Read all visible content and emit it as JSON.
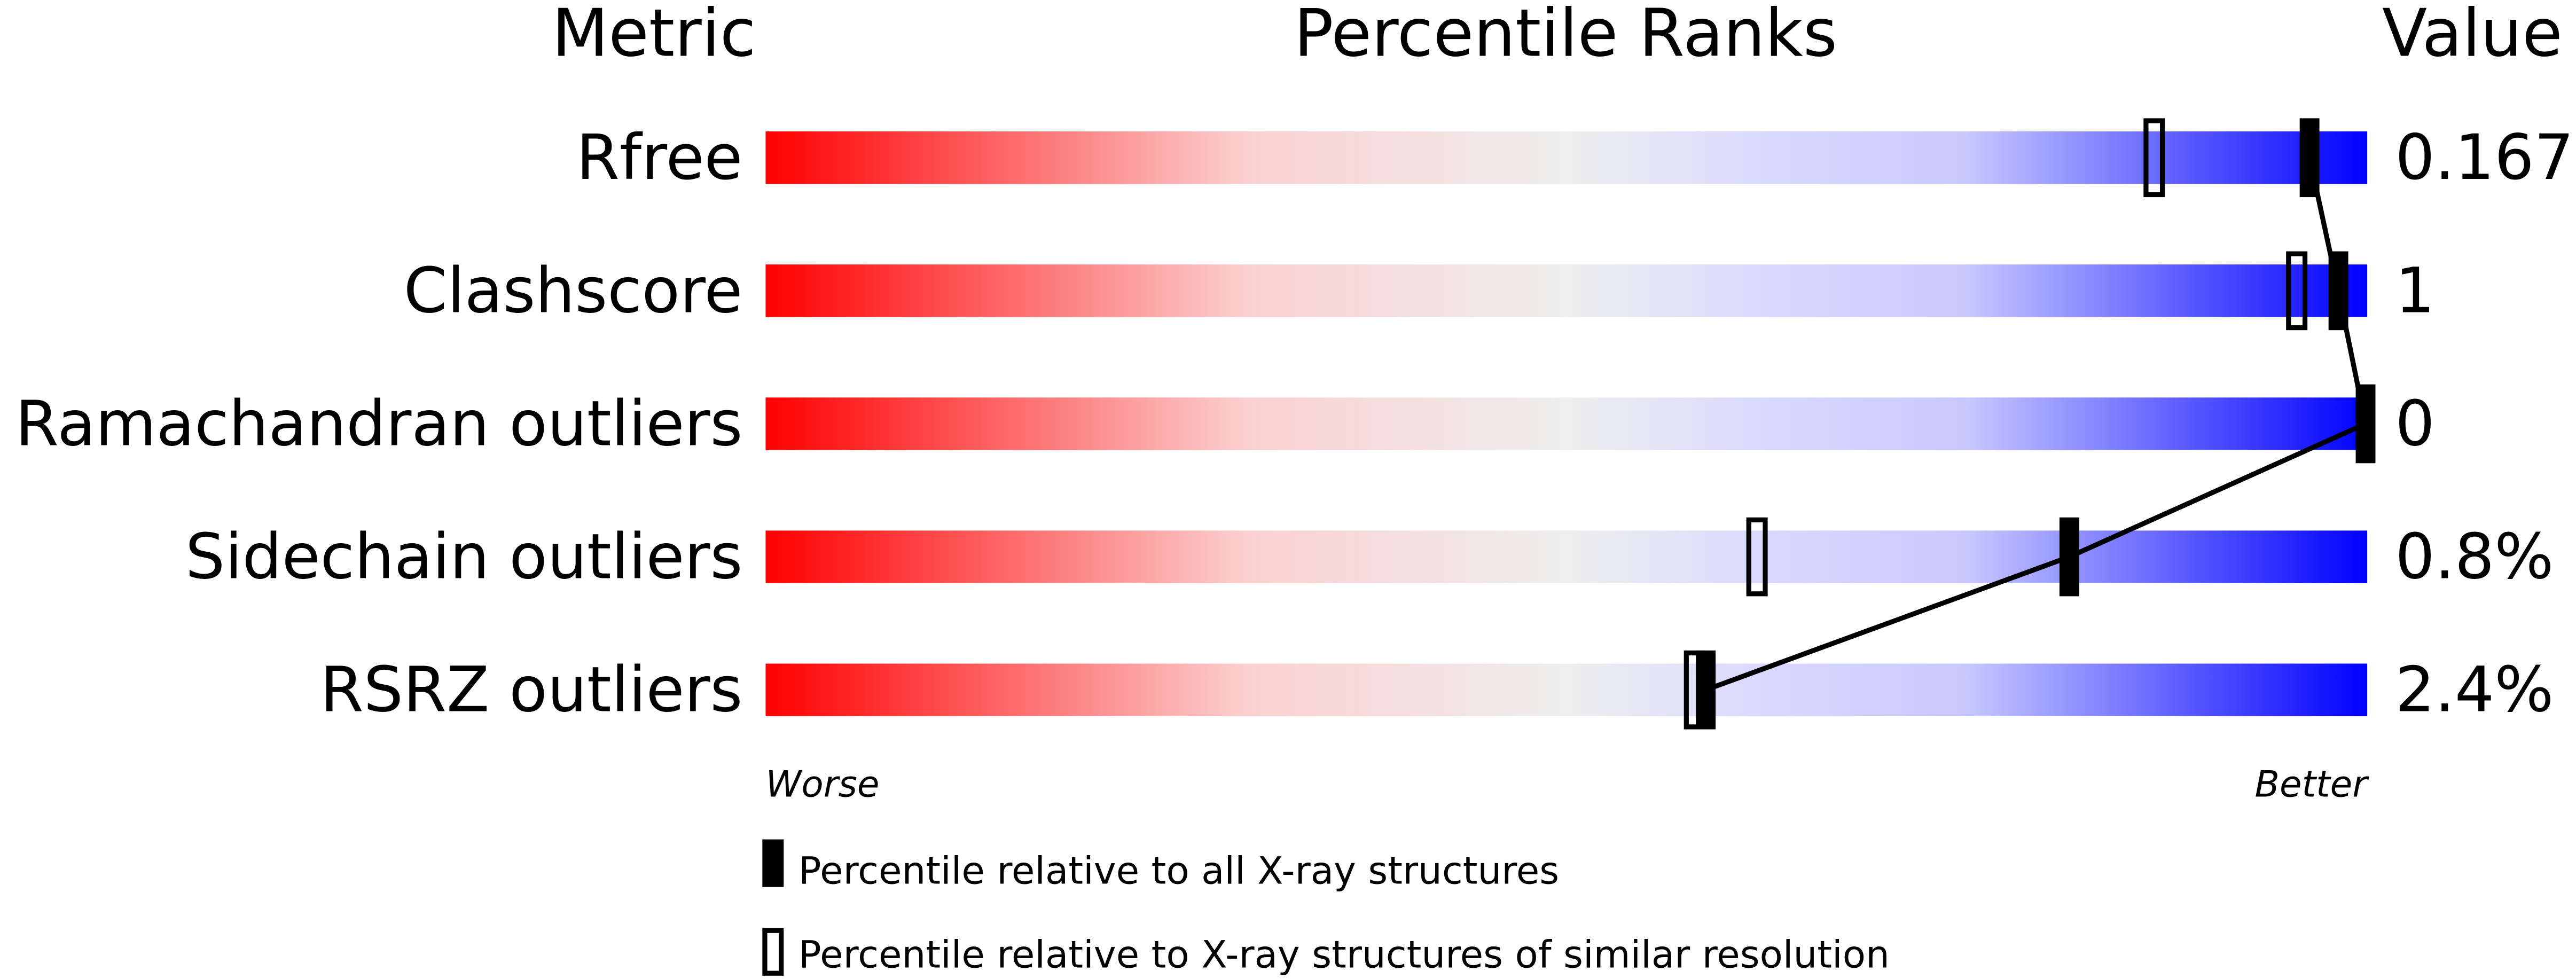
{
  "headers": {
    "metric": "Metric",
    "percentile": "Percentile Ranks",
    "value": "Value"
  },
  "axis": {
    "left_label": "Worse",
    "right_label": "Better"
  },
  "legend": {
    "filled": "Percentile relative to all X-ray structures",
    "open": "Percentile relative to X-ray structures of similar resolution"
  },
  "colors": {
    "worse": "#ff0000",
    "middle": "#eeeeee",
    "light_blue": "#d8d8ff",
    "better": "#0000ff",
    "marker": "#000000"
  },
  "chart_data": {
    "type": "bar",
    "xlim": [
      0,
      100
    ],
    "categories": [
      "Rfree",
      "Clashscore",
      "Ramachandran outliers",
      "Sidechain outliers",
      "RSRZ outliers"
    ],
    "values": [
      "0.167",
      "1",
      "0",
      "0.8%",
      "2.4%"
    ],
    "series": [
      {
        "name": "Percentile relative to all X-ray structures",
        "marker": "filled",
        "values": [
          96.4,
          98.2,
          100,
          81.4,
          58.7
        ]
      },
      {
        "name": "Percentile relative to X-ray structures of similar resolution",
        "marker": "open",
        "values": [
          86.7,
          95.6,
          null,
          61.9,
          58.0
        ]
      }
    ]
  }
}
